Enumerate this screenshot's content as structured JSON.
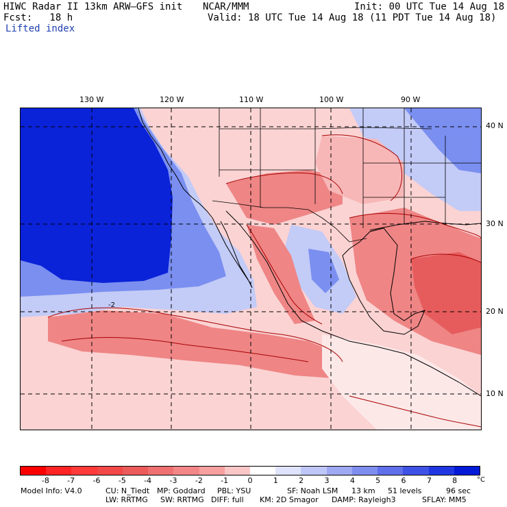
{
  "header": {
    "title": "HIWC Radar II 13km ARW–GFS init",
    "org": "NCAR/MMM",
    "init": "Init: 00 UTC Tue 14 Aug 18",
    "fcst": "Fcst:   18 h",
    "valid": "Valid: 18 UTC Tue 14 Aug 18 (11 PDT Tue 14 Aug 18)",
    "field": "Lifted index"
  },
  "map": {
    "lon_labels": [
      "130 W",
      "120 W",
      "110 W",
      "100 W",
      "90 W"
    ],
    "lat_labels": [
      "40 N",
      "30 N",
      "20 N",
      "10 N"
    ],
    "contour_label": "-2",
    "colors": {
      "strong_stable": "#0a22d8",
      "stable": "#7a8ff0",
      "weak_stable": "#c3cbf7",
      "neutral": "#fde8e8",
      "weak_unstable": "#f8b7b7",
      "unstable": "#ef8585",
      "strong_unstable": "#e65c5c",
      "contour": "#a80000",
      "grid": "#000000"
    }
  },
  "colorbar": {
    "ticks": [
      "-8",
      "-7",
      "-6",
      "-5",
      "-4",
      "-3",
      "-2",
      "-1",
      "0",
      "1",
      "2",
      "3",
      "4",
      "5",
      "6",
      "7",
      "8"
    ],
    "unit": "°C",
    "colors": [
      "#ff0000",
      "#ff2424",
      "#ff3a3a",
      "#f24848",
      "#ec5a5a",
      "#ee7070",
      "#f38787",
      "#f6a0a0",
      "#fbc6c6",
      "#ffffff",
      "#dfe3fb",
      "#bfc6f8",
      "#9fa9f3",
      "#7f8def",
      "#5f70ea",
      "#3f52e6",
      "#2036e2",
      "#001ad8"
    ]
  },
  "footer": {
    "model_info": "Model Info: V4.0",
    "cu": "CU: N_Tiedt",
    "mp": "MP: Goddard",
    "pbl": "PBL: YSU",
    "sf": "SF: Noah LSM",
    "res": "13 km",
    "levels": "51 levels",
    "dt": "96 sec",
    "lw": "LW: RRTMG",
    "sw": "SW: RRTMG",
    "diff": "DIFF: full",
    "km": "KM: 2D Smagor",
    "damp": "DAMP: Rayleigh3",
    "sflay": "SFLAY: MM5"
  }
}
